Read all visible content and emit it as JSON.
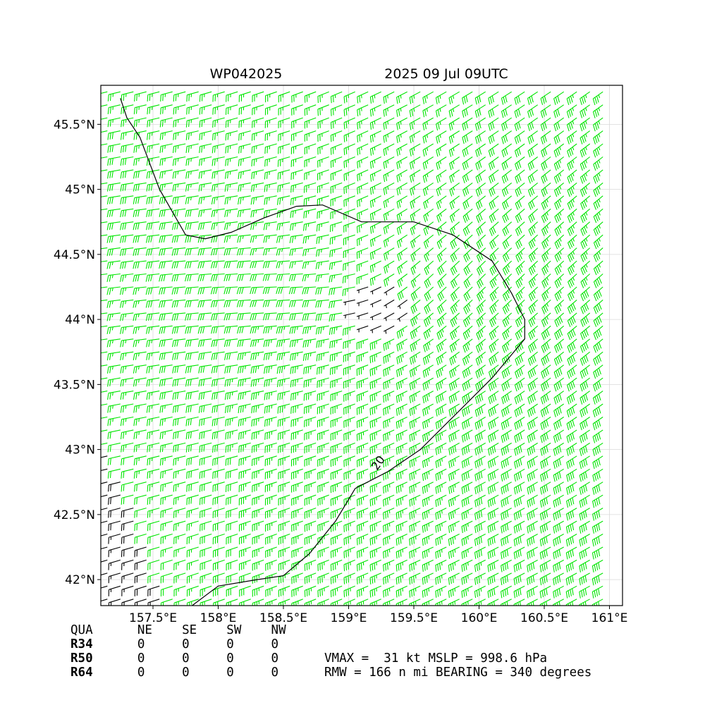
{
  "title_left": "WP042025",
  "title_right": "2025 09 Jul 09UTC",
  "colors": {
    "weak_barb": "#000000",
    "strong_barb": "#00e600",
    "contour": "#000000",
    "frame": "#000000",
    "grid": "#d9d9d9"
  },
  "chart_data": {
    "type": "wind-barb-map",
    "xlim": [
      157.1,
      161.1
    ],
    "ylim": [
      41.8,
      45.8
    ],
    "x_ticks": [
      157.5,
      158.0,
      158.5,
      159.0,
      159.5,
      160.0,
      160.5,
      161.0
    ],
    "x_tick_labels": [
      "157.5°E",
      "158°E",
      "158.5°E",
      "159°E",
      "159.5°E",
      "160°E",
      "160.5°E",
      "161°E"
    ],
    "y_ticks": [
      42.0,
      42.5,
      43.0,
      43.5,
      44.0,
      44.5,
      45.0,
      45.5
    ],
    "y_tick_labels": [
      "42°N",
      "42.5°N",
      "43°N",
      "43.5°N",
      "44°N",
      "44.5°N",
      "45°N",
      "45.5°N"
    ],
    "grid": true,
    "barb_spacing_deg": 0.1,
    "barb_units": "kt",
    "barb_color_threshold_kt": 20,
    "contour_levels": [
      20
    ],
    "contour_label": "20",
    "center": {
      "lon": 159.25,
      "lat": 44.1
    },
    "vmax_kt": 31,
    "rmw_nmi": 166,
    "bearing_deg": 340,
    "contour_20kt": [
      [
        157.8,
        41.8
      ],
      [
        158.0,
        41.95
      ],
      [
        158.3,
        42.0
      ],
      [
        158.5,
        42.03
      ],
      [
        158.7,
        42.2
      ],
      [
        158.9,
        42.45
      ],
      [
        159.05,
        42.7
      ],
      [
        159.3,
        42.83
      ],
      [
        159.55,
        43.0
      ],
      [
        159.7,
        43.15
      ],
      [
        159.85,
        43.3
      ],
      [
        160.1,
        43.55
      ],
      [
        160.35,
        43.85
      ],
      [
        160.35,
        44.0
      ],
      [
        160.25,
        44.2
      ],
      [
        160.1,
        44.45
      ],
      [
        159.8,
        44.65
      ],
      [
        159.5,
        44.75
      ],
      [
        159.1,
        44.75
      ],
      [
        158.8,
        44.88
      ],
      [
        158.6,
        44.87
      ],
      [
        158.35,
        44.78
      ],
      [
        158.1,
        44.67
      ],
      [
        157.9,
        44.62
      ],
      [
        157.75,
        44.65
      ],
      [
        157.55,
        45.0
      ],
      [
        157.4,
        45.4
      ],
      [
        157.3,
        45.55
      ],
      [
        157.25,
        45.7
      ]
    ],
    "stats_table": {
      "header": [
        "QUA",
        "NE",
        "SE",
        "SW",
        "NW"
      ],
      "rows": [
        {
          "label": "R34",
          "values": [
            "0",
            "0",
            "0",
            "0"
          ]
        },
        {
          "label": "R50",
          "values": [
            "0",
            "0",
            "0",
            "0"
          ]
        },
        {
          "label": "R64",
          "values": [
            "0",
            "0",
            "0",
            "0"
          ]
        }
      ]
    },
    "summary_line_1": "VMAX =  31 kt MSLP = 998.6 hPa",
    "summary_line_2": "RMW = 166 n mi BEARING = 340 degrees"
  }
}
